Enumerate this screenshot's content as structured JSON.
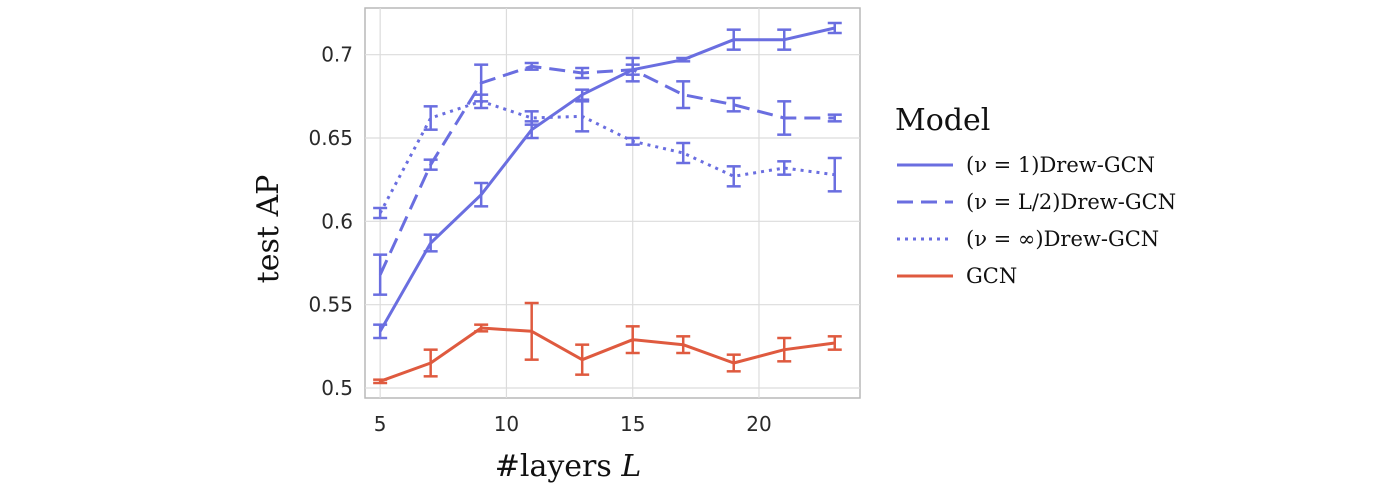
{
  "chart_data": {
    "type": "line",
    "xlabel": "#layers L",
    "ylabel": "test AP",
    "xlim": [
      4.4,
      24.0
    ],
    "ylim": [
      0.494,
      0.728
    ],
    "xticks": [
      5,
      10,
      15,
      20
    ],
    "yticks": [
      0.5,
      0.55,
      0.6,
      0.65,
      0.7
    ],
    "ytick_labels": [
      "0.5",
      "0.55",
      "0.6",
      "0.65",
      "0.7"
    ],
    "grid": true,
    "legend": {
      "title": "Model",
      "placement": "right"
    },
    "colors": {
      "drew": "#6a6ee0",
      "gcn": "#df5a3f"
    },
    "series": [
      {
        "name": "(ν = 1)Drew-GCN",
        "dash": "solid",
        "color": "#6a6ee0",
        "x": [
          5,
          7,
          9,
          11,
          13,
          15,
          17,
          19,
          21,
          23
        ],
        "y": [
          0.534,
          0.587,
          0.616,
          0.655,
          0.676,
          0.691,
          0.697,
          0.709,
          0.709,
          0.716
        ],
        "err": [
          0.004,
          0.005,
          0.007,
          0.005,
          0.003,
          0.003,
          0.001,
          0.006,
          0.006,
          0.003
        ]
      },
      {
        "name": "(ν = L/2)Drew-GCN",
        "dash": "dashed",
        "color": "#6a6ee0",
        "x": [
          5,
          7,
          9,
          11,
          13,
          15,
          17,
          19,
          21,
          23
        ],
        "y": [
          0.568,
          0.634,
          0.683,
          0.693,
          0.689,
          0.691,
          0.676,
          0.67,
          0.662,
          0.662
        ],
        "err": [
          0.012,
          0.003,
          0.011,
          0.002,
          0.003,
          0.007,
          0.008,
          0.004,
          0.01,
          0.002
        ]
      },
      {
        "name": "(ν = ∞)Drew-GCN",
        "dash": "dotted",
        "color": "#6a6ee0",
        "x": [
          5,
          7,
          9,
          11,
          13,
          15,
          17,
          19,
          21,
          23
        ],
        "y": [
          0.605,
          0.662,
          0.672,
          0.662,
          0.663,
          0.648,
          0.641,
          0.627,
          0.632,
          0.628
        ],
        "err": [
          0.003,
          0.007,
          0.004,
          0.004,
          0.009,
          0.002,
          0.006,
          0.006,
          0.004,
          0.01
        ]
      },
      {
        "name": "GCN",
        "dash": "solid",
        "color": "#df5a3f",
        "x": [
          5,
          7,
          9,
          11,
          13,
          15,
          17,
          19,
          21,
          23
        ],
        "y": [
          0.504,
          0.515,
          0.536,
          0.534,
          0.517,
          0.529,
          0.526,
          0.515,
          0.523,
          0.527
        ],
        "err": [
          0.001,
          0.008,
          0.002,
          0.017,
          0.009,
          0.008,
          0.005,
          0.005,
          0.007,
          0.004
        ]
      }
    ]
  }
}
